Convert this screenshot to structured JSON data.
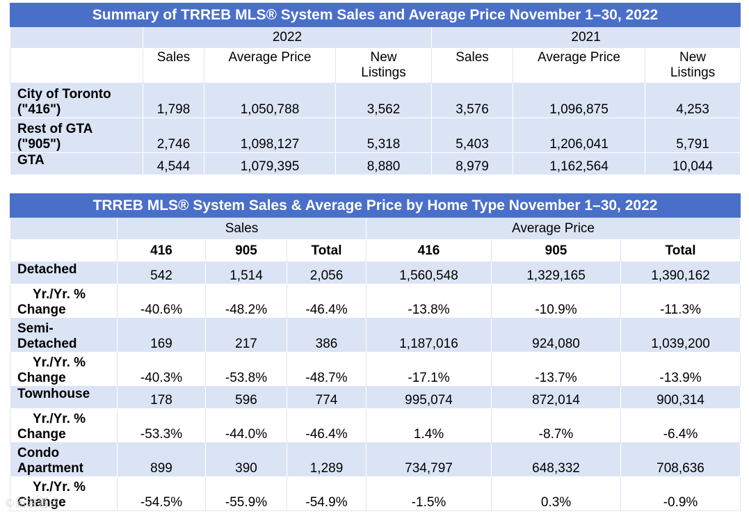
{
  "table1": {
    "title": "Summary of TRREB MLS® System Sales and Average Price November 1–30, 2022",
    "year_a": "2022",
    "year_b": "2021",
    "col_sales": "Sales",
    "col_avg_price": "Average Price",
    "col_new_listings_1": "New",
    "col_new_listings_2": "Listings",
    "rows": [
      {
        "label1": "City of Toronto",
        "label2": "(\"416\")",
        "values": [
          "1,798",
          "1,050,788",
          "3,562",
          "3,576",
          "1,096,875",
          "4,253"
        ]
      },
      {
        "label1": "Rest of GTA",
        "label2": "(\"905\")",
        "values": [
          "2,746",
          "1,098,127",
          "5,318",
          "5,403",
          "1,206,041",
          "5,791"
        ]
      },
      {
        "label1": "GTA",
        "label2": "",
        "values": [
          "4,544",
          "1,079,395",
          "8,880",
          "8,979",
          "1,162,564",
          "10,044"
        ]
      }
    ]
  },
  "table2": {
    "title": "TRREB MLS® System Sales & Average Price by Home Type November 1–30, 2022",
    "group_sales": "Sales",
    "group_avg_price": "Average Price",
    "subheaders": [
      "416",
      "905",
      "Total",
      "416",
      "905",
      "Total"
    ],
    "rows": [
      {
        "label1": "Detached",
        "label2": "",
        "values": [
          "542",
          "1,514",
          "2,056",
          "1,560,548",
          "1,329,165",
          "1,390,162"
        ],
        "type": "main"
      },
      {
        "label1": "Yr./Yr. %",
        "label2": "Change",
        "values": [
          "-40.6%",
          "-48.2%",
          "-46.4%",
          "-13.8%",
          "-10.9%",
          "-11.3%"
        ],
        "type": "sub"
      },
      {
        "label1": "Semi-",
        "label2": "Detached",
        "values": [
          "169",
          "217",
          "386",
          "1,187,016",
          "924,080",
          "1,039,200"
        ],
        "type": "main"
      },
      {
        "label1": "Yr./Yr. %",
        "label2": "Change",
        "values": [
          "-40.3%",
          "-53.8%",
          "-48.7%",
          "-17.1%",
          "-13.7%",
          "-13.9%"
        ],
        "type": "sub"
      },
      {
        "label1": "Townhouse",
        "label2": "",
        "values": [
          "178",
          "596",
          "774",
          "995,074",
          "872,014",
          "900,314"
        ],
        "type": "main"
      },
      {
        "label1": "Yr./Yr. %",
        "label2": "Change",
        "values": [
          "-53.3%",
          "-44.0%",
          "-46.4%",
          "1.4%",
          "-8.7%",
          "-6.4%"
        ],
        "type": "sub"
      },
      {
        "label1": "Condo",
        "label2": "Apartment",
        "values": [
          "899",
          "390",
          "1,289",
          "734,797",
          "648,332",
          "708,636"
        ],
        "type": "main"
      },
      {
        "label1": "Yr./Yr. %",
        "label2": "Change",
        "values": [
          "-54.5%",
          "-55.9%",
          "-54.9%",
          "-1.5%",
          "0.3%",
          "-0.9%"
        ],
        "type": "sub"
      }
    ]
  },
  "watermark": "©新浪看点"
}
